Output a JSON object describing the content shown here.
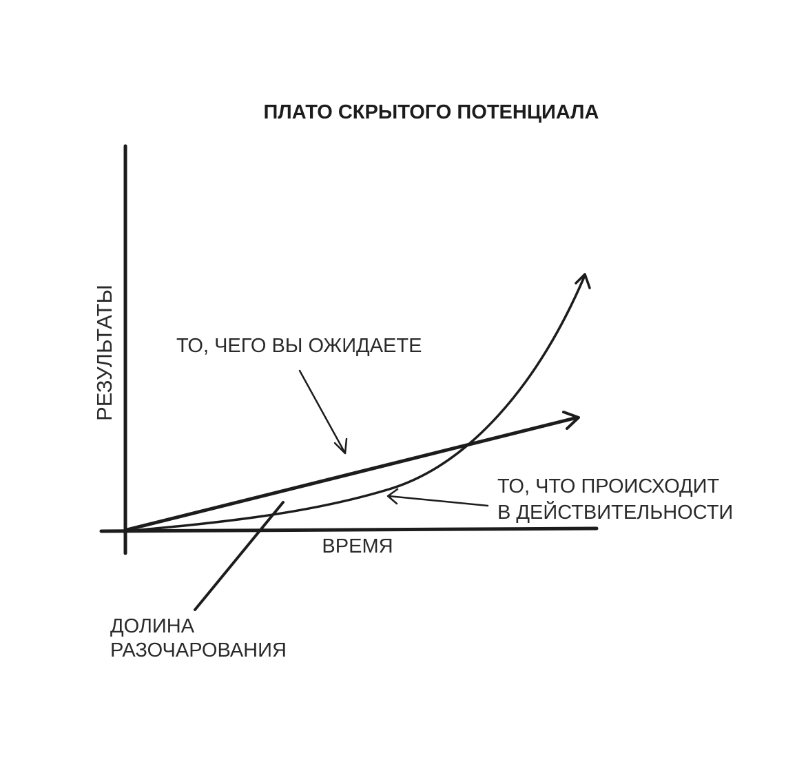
{
  "diagram": {
    "title": "ПЛАТО СКРЫТОГО ПОТЕНЦИАЛА",
    "y_axis_label": "РЕЗУЛЬТАТЫ",
    "x_axis_label": "ВРЕМЯ",
    "expected_label": "ТО, ЧЕГО ВЫ ОЖИДАЕТЕ",
    "actual_label_line1": "ТО, ЧТО ПРОИСХОДИТ",
    "actual_label_line2": "В ДЕЙСТВИТЕЛЬНОСТИ",
    "valley_label_line1": "ДОЛИНА",
    "valley_label_line2": "РАЗОЧАРОВАНИЯ",
    "colors": {
      "ink": "#1c1c1c",
      "background": "#ffffff"
    }
  }
}
